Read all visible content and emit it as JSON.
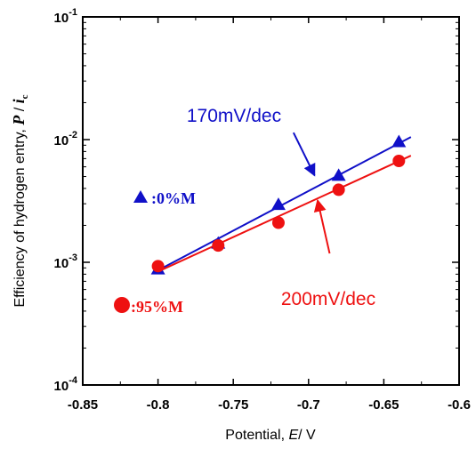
{
  "chart_data": {
    "type": "scatter",
    "title": "",
    "xlabel": {
      "prefix": "Potential, ",
      "symbol": "E",
      "suffix": "/ V"
    },
    "ylabel": {
      "prefix": "Efficiency of hydrogen entry, ",
      "symbol_p": "P",
      "slash": " / ",
      "symbol_i": "i",
      "sub": "c"
    },
    "xlim": [
      -0.85,
      -0.6
    ],
    "ylim": [
      0.0001,
      0.1
    ],
    "yscale": "log",
    "xticks": [
      -0.85,
      -0.8,
      -0.75,
      -0.7,
      -0.65,
      -0.6
    ],
    "xtick_labels": [
      "-0.85",
      "-0.8",
      "-0.75",
      "-0.7",
      "-0.65",
      "-0.6"
    ],
    "yticks": [
      {
        "value": 0.0001,
        "base": "10",
        "exp": "-4"
      },
      {
        "value": 0.001,
        "base": "10",
        "exp": "-3"
      },
      {
        "value": 0.01,
        "base": "10",
        "exp": "-2"
      },
      {
        "value": 0.1,
        "base": "10",
        "exp": "-1"
      }
    ],
    "grid": false,
    "series": [
      {
        "name": ":0%M",
        "marker": "triangle",
        "color": "#1010c8",
        "x": [
          -0.8,
          -0.76,
          -0.72,
          -0.68,
          -0.64
        ],
        "y": [
          0.00088,
          0.00143,
          0.00295,
          0.0051,
          0.0096
        ],
        "fit": {
          "x": [
            -0.8,
            -0.632
          ],
          "y": [
            0.00086,
            0.0105
          ]
        }
      },
      {
        "name": ":95%M",
        "marker": "circle",
        "color": "#ee1111",
        "x": [
          -0.8,
          -0.76,
          -0.72,
          -0.68,
          -0.64
        ],
        "y": [
          0.00093,
          0.00137,
          0.0021,
          0.0039,
          0.0067
        ],
        "fit": {
          "x": [
            -0.8,
            -0.632
          ],
          "y": [
            0.00084,
            0.0074
          ]
        }
      }
    ],
    "annotations": [
      {
        "text": "170mV/dec",
        "color": "#1010c8",
        "from": [
          -0.71,
          0.0114
        ],
        "to": [
          -0.696,
          0.0051
        ]
      },
      {
        "text": "200mV/dec",
        "color": "#ee1111",
        "from": [
          -0.686,
          0.00118
        ],
        "to": [
          -0.694,
          0.0032
        ]
      }
    ],
    "legend_placement": "left"
  }
}
